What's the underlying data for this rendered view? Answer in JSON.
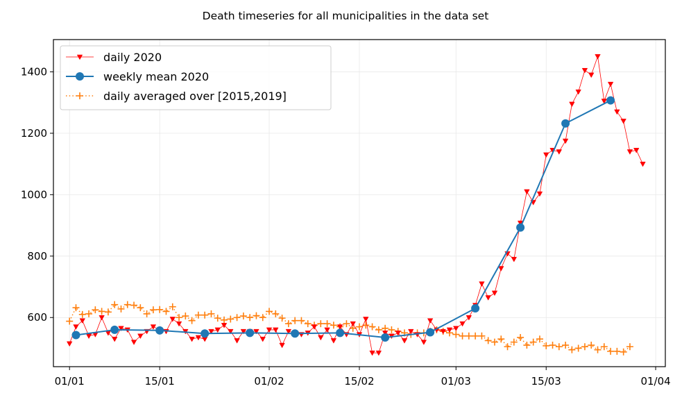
{
  "chart_data": {
    "type": "line",
    "title": "Death timeseries for all municipalities in the data set",
    "xlabel": "",
    "ylabel": "",
    "x_unit": "day of year 2020 (1 = 01/01)",
    "xlim": [
      -1.5,
      93.5
    ],
    "ylim": [
      440,
      1505
    ],
    "grid": true,
    "legend_position": "top-left",
    "x_ticks": [
      {
        "value": 1,
        "label": "01/01"
      },
      {
        "value": 15,
        "label": "15/01"
      },
      {
        "value": 32,
        "label": "01/02"
      },
      {
        "value": 46,
        "label": "15/02"
      },
      {
        "value": 61,
        "label": "01/03"
      },
      {
        "value": 75,
        "label": "15/03"
      },
      {
        "value": 92,
        "label": "01/04"
      }
    ],
    "y_ticks": [
      {
        "value": 600,
        "label": "600"
      },
      {
        "value": 800,
        "label": "800"
      },
      {
        "value": 1000,
        "label": "1000"
      },
      {
        "value": 1200,
        "label": "1200"
      },
      {
        "value": 1400,
        "label": "1400"
      }
    ],
    "series": [
      {
        "name": "daily averaged over [2015,2019]",
        "color": "#ff7f0e",
        "style": "dotted-plus",
        "x_start": 1,
        "values": [
          588,
          632,
          610,
          612,
          625,
          620,
          618,
          642,
          628,
          642,
          640,
          632,
          612,
          625,
          626,
          620,
          635,
          600,
          605,
          590,
          608,
          608,
          612,
          598,
          592,
          595,
          600,
          605,
          600,
          606,
          600,
          620,
          612,
          598,
          580,
          590,
          590,
          580,
          575,
          580,
          580,
          575,
          570,
          580,
          565,
          570,
          575,
          570,
          560,
          565,
          560,
          555,
          550,
          545,
          550,
          550,
          555,
          560,
          555,
          550,
          545,
          540,
          540,
          540,
          540,
          525,
          520,
          530,
          505,
          520,
          535,
          510,
          520,
          530,
          508,
          510,
          505,
          510,
          495,
          500,
          505,
          510,
          495,
          505,
          490,
          490,
          488,
          505
        ]
      },
      {
        "name": "daily 2020",
        "color": "#ff0000",
        "style": "line-triangle",
        "x_start": 1,
        "values": [
          515,
          570,
          590,
          540,
          545,
          600,
          550,
          530,
          565,
          560,
          520,
          540,
          555,
          570,
          560,
          555,
          595,
          580,
          555,
          530,
          535,
          530,
          555,
          560,
          575,
          555,
          525,
          555,
          555,
          555,
          530,
          560,
          560,
          510,
          555,
          550,
          545,
          550,
          570,
          535,
          560,
          525,
          570,
          545,
          580,
          545,
          595,
          485,
          485,
          550,
          540,
          550,
          525,
          555,
          545,
          520,
          590,
          560,
          555,
          560,
          565,
          580,
          600,
          640,
          710,
          665,
          680,
          760,
          808,
          790,
          908,
          1010,
          975,
          1003,
          1130,
          1145,
          1140,
          1175,
          1295,
          1335,
          1405,
          1390,
          1450,
          1305,
          1360,
          1270,
          1240,
          1140,
          1145,
          1100
        ]
      },
      {
        "name": "weekly mean 2020",
        "color": "#1f77b4",
        "style": "line-circle",
        "x": [
          2,
          8,
          15,
          22,
          29,
          36,
          43,
          50,
          57,
          64,
          71,
          78,
          85
        ],
        "values": [
          543,
          560,
          558,
          548,
          550,
          548,
          550,
          535,
          552,
          630,
          893,
          1232,
          1307
        ]
      }
    ]
  }
}
